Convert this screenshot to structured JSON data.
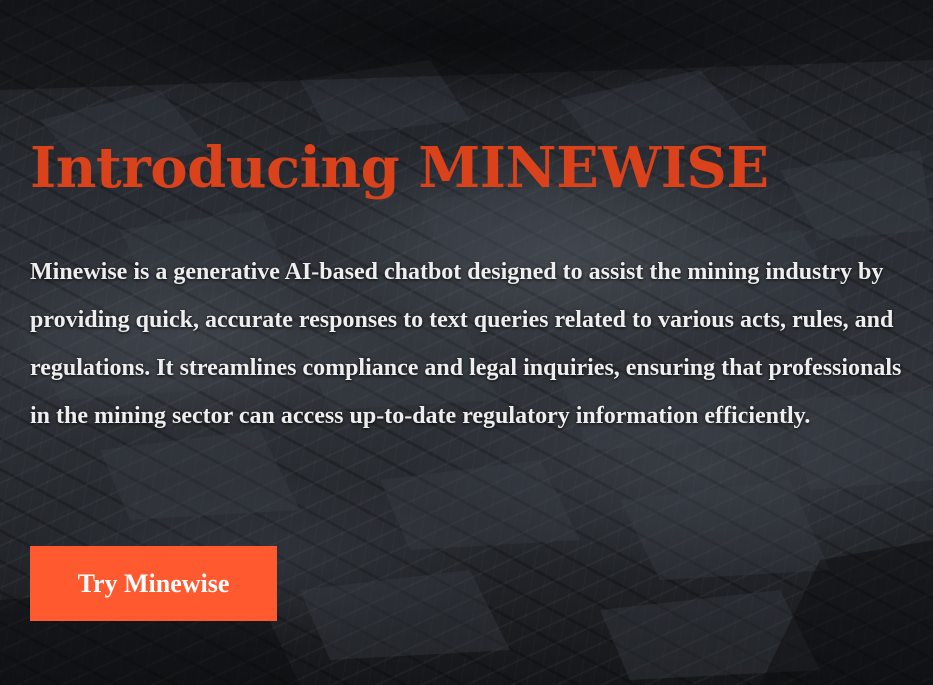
{
  "hero": {
    "title": "Introducing MINEWISE",
    "description": "Minewise is a generative AI-based chatbot designed to assist the mining industry by providing quick, accurate responses to text queries related to various acts, rules, and regulations. It streamlines compliance and legal inquiries, ensuring that professionals in the mining sector can access up-to-date regulatory information efficiently.",
    "cta_label": "Try Minewise",
    "background": "coal-rock-texture"
  },
  "colors": {
    "title": "#d9421a",
    "description_text": "#eeeeee",
    "button_background": "#ff5a2f",
    "button_text": "#ffffff",
    "background_dark": "#15171b"
  }
}
